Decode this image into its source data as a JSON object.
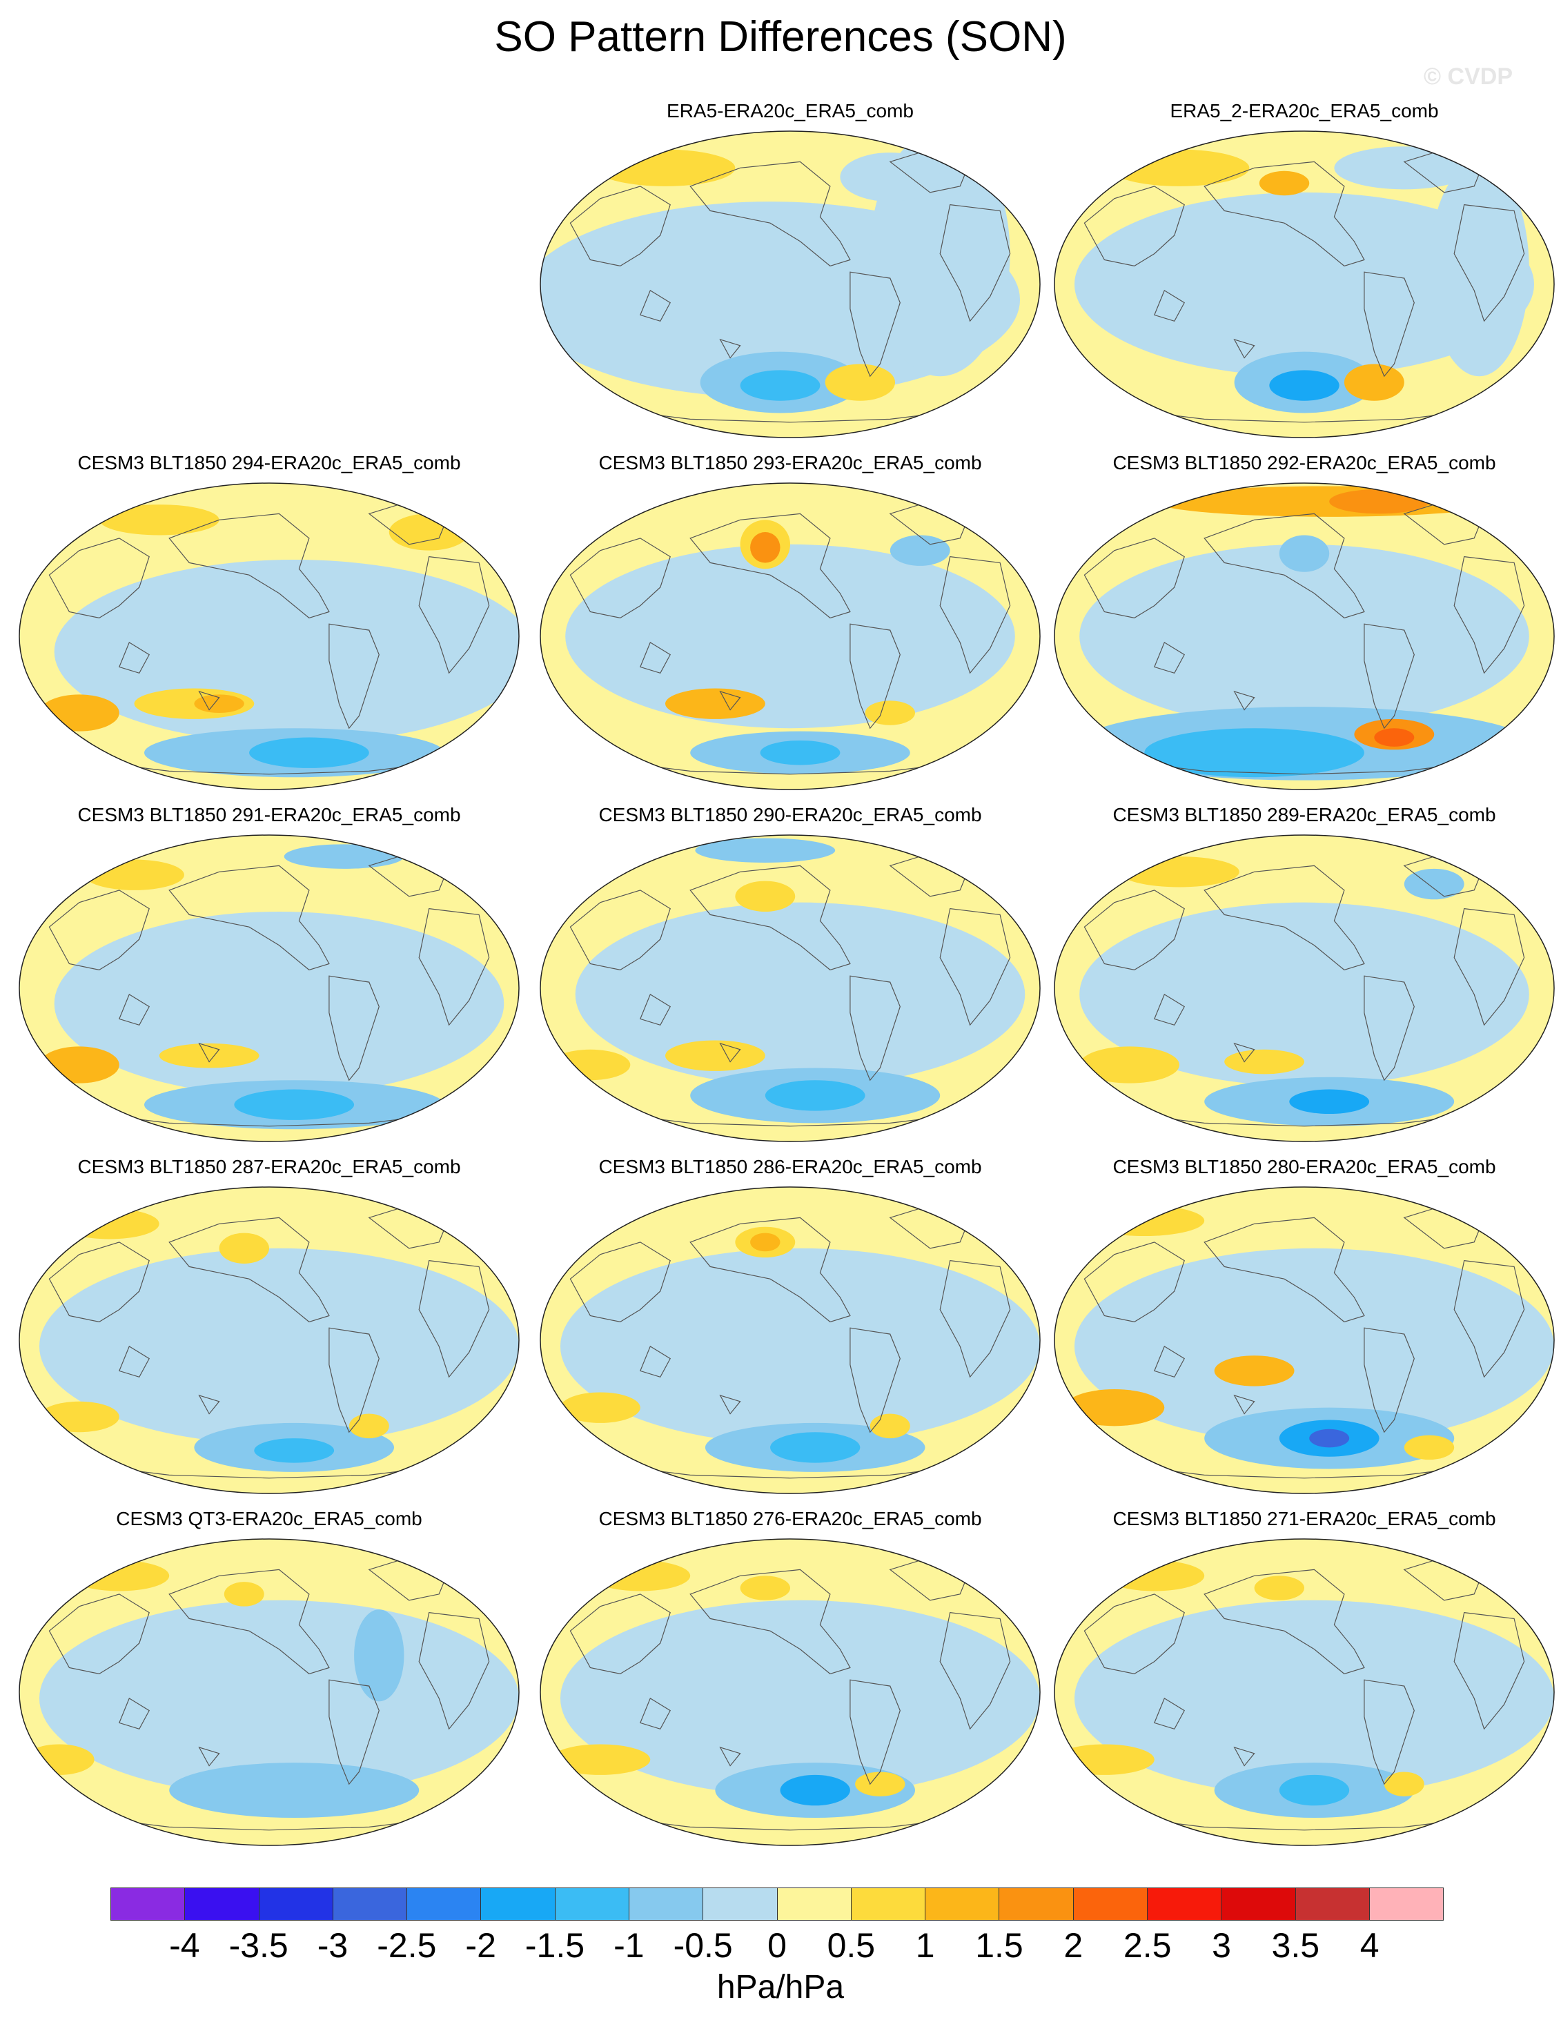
{
  "title": "SO Pattern Differences (SON)",
  "credit": "© CVDP",
  "panels": [
    {
      "label": "ERA5-ERA20c_ERA5_comb",
      "variant": 0
    },
    {
      "label": "ERA5_2-ERA20c_ERA5_comb",
      "variant": 1
    },
    {
      "label": "CESM3 BLT1850 294-ERA20c_ERA5_comb",
      "variant": 2
    },
    {
      "label": "CESM3 BLT1850 293-ERA20c_ERA5_comb",
      "variant": 3
    },
    {
      "label": "CESM3 BLT1850 292-ERA20c_ERA5_comb",
      "variant": 4
    },
    {
      "label": "CESM3 BLT1850 291-ERA20c_ERA5_comb",
      "variant": 5
    },
    {
      "label": "CESM3 BLT1850 290-ERA20c_ERA5_comb",
      "variant": 6
    },
    {
      "label": "CESM3 BLT1850 289-ERA20c_ERA5_comb",
      "variant": 7
    },
    {
      "label": "CESM3 BLT1850 287-ERA20c_ERA5_comb",
      "variant": 8
    },
    {
      "label": "CESM3 BLT1850 286-ERA20c_ERA5_comb",
      "variant": 9
    },
    {
      "label": "CESM3 BLT1850 280-ERA20c_ERA5_comb",
      "variant": 10
    },
    {
      "label": "CESM3 QT3-ERA20c_ERA5_comb",
      "variant": 11
    },
    {
      "label": "CESM3 BLT1850 276-ERA20c_ERA5_comb",
      "variant": 12
    },
    {
      "label": "CESM3 BLT1850 271-ERA20c_ERA5_comb",
      "variant": 13
    }
  ],
  "colorbar": {
    "colors": [
      "#8a2be2",
      "#3a10f0",
      "#2233e6",
      "#3a66dd",
      "#2b84f2",
      "#18a8f5",
      "#3bbcf4",
      "#86c9ee",
      "#b7dcef",
      "#fdf59b",
      "#fddb3c",
      "#fcb619",
      "#fa9211",
      "#fb640c",
      "#f71a0a",
      "#dd0a0a",
      "#c73131",
      "#ffb2b8"
    ],
    "ticks": [
      "-4",
      "-3.5",
      "-3",
      "-2.5",
      "-2",
      "-1.5",
      "-1",
      "-0.5",
      "0",
      "0.5",
      "1",
      "1.5",
      "2",
      "2.5",
      "3",
      "3.5",
      "4"
    ],
    "units": "hPa/hPa"
  }
}
